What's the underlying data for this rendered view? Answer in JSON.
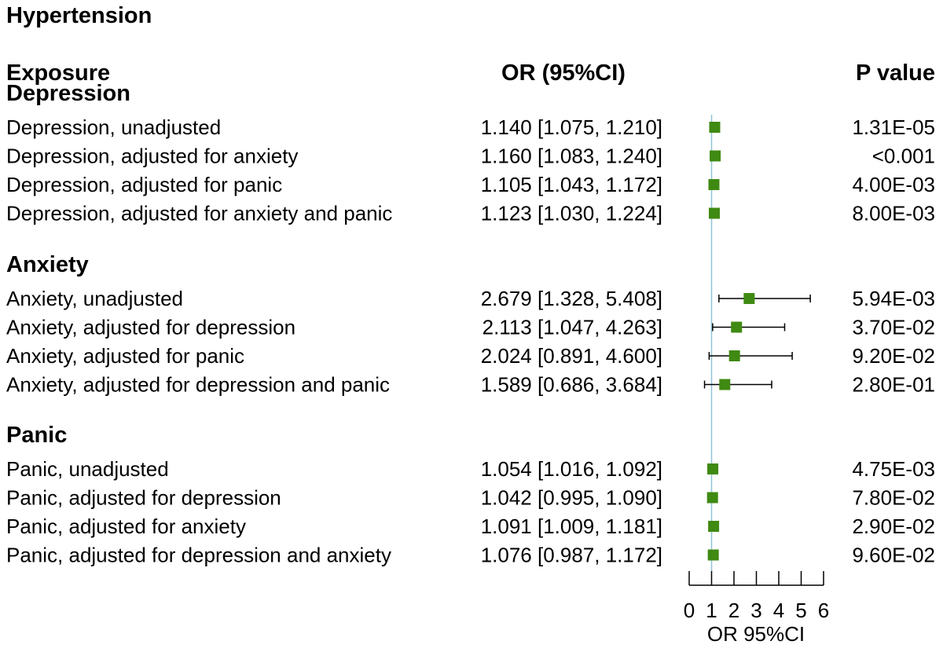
{
  "chart_data": {
    "type": "forest",
    "title": "Hypertension",
    "headers": {
      "exposure": "Exposure",
      "or": "OR (95%CI)",
      "p": "P value"
    },
    "xlabel": "OR 95%CI",
    "xlim": [
      0,
      6
    ],
    "xticks": [
      0,
      1,
      2,
      3,
      4,
      5,
      6
    ],
    "reference_line": 1,
    "marker_color": "#3f8a12",
    "reference_color": "#8fc4d6",
    "groups": [
      {
        "name": "Depression",
        "rows": [
          {
            "label": "Depression, unadjusted",
            "or_text": "1.140 [1.075, 1.210]",
            "or": 1.14,
            "lo": 1.075,
            "hi": 1.21,
            "p": "1.31E-05"
          },
          {
            "label": "Depression, adjusted for anxiety",
            "or_text": "1.160 [1.083, 1.240]",
            "or": 1.16,
            "lo": 1.083,
            "hi": 1.24,
            "p": "<0.001"
          },
          {
            "label": "Depression, adjusted for panic",
            "or_text": "1.105 [1.043, 1.172]",
            "or": 1.105,
            "lo": 1.043,
            "hi": 1.172,
            "p": "4.00E-03"
          },
          {
            "label": "Depression, adjusted for anxiety and panic",
            "or_text": "1.123 [1.030, 1.224]",
            "or": 1.123,
            "lo": 1.03,
            "hi": 1.224,
            "p": "8.00E-03"
          }
        ]
      },
      {
        "name": "Anxiety",
        "rows": [
          {
            "label": "Anxiety, unadjusted",
            "or_text": "2.679 [1.328, 5.408]",
            "or": 2.679,
            "lo": 1.328,
            "hi": 5.408,
            "p": "5.94E-03"
          },
          {
            "label": "Anxiety, adjusted for depression",
            "or_text": "2.113 [1.047, 4.263]",
            "or": 2.113,
            "lo": 1.047,
            "hi": 4.263,
            "p": "3.70E-02"
          },
          {
            "label": "Anxiety, adjusted for panic",
            "or_text": "2.024 [0.891, 4.600]",
            "or": 2.024,
            "lo": 0.891,
            "hi": 4.6,
            "p": "9.20E-02"
          },
          {
            "label": "Anxiety, adjusted for depression and panic",
            "or_text": "1.589 [0.686, 3.684]",
            "or": 1.589,
            "lo": 0.686,
            "hi": 3.684,
            "p": "2.80E-01"
          }
        ]
      },
      {
        "name": "Panic",
        "rows": [
          {
            "label": "Panic, unadjusted",
            "or_text": "1.054 [1.016, 1.092]",
            "or": 1.054,
            "lo": 1.016,
            "hi": 1.092,
            "p": "4.75E-03"
          },
          {
            "label": "Panic, adjusted for depression",
            "or_text": "1.042 [0.995, 1.090]",
            "or": 1.042,
            "lo": 0.995,
            "hi": 1.09,
            "p": "7.80E-02"
          },
          {
            "label": "Panic, adjusted for anxiety",
            "or_text": "1.091 [1.009, 1.181]",
            "or": 1.091,
            "lo": 1.009,
            "hi": 1.181,
            "p": "2.90E-02"
          },
          {
            "label": "Panic, adjusted for depression and anxiety",
            "or_text": "1.076 [0.987, 1.172]",
            "or": 1.076,
            "lo": 0.987,
            "hi": 1.172,
            "p": "9.60E-02"
          }
        ]
      }
    ]
  }
}
